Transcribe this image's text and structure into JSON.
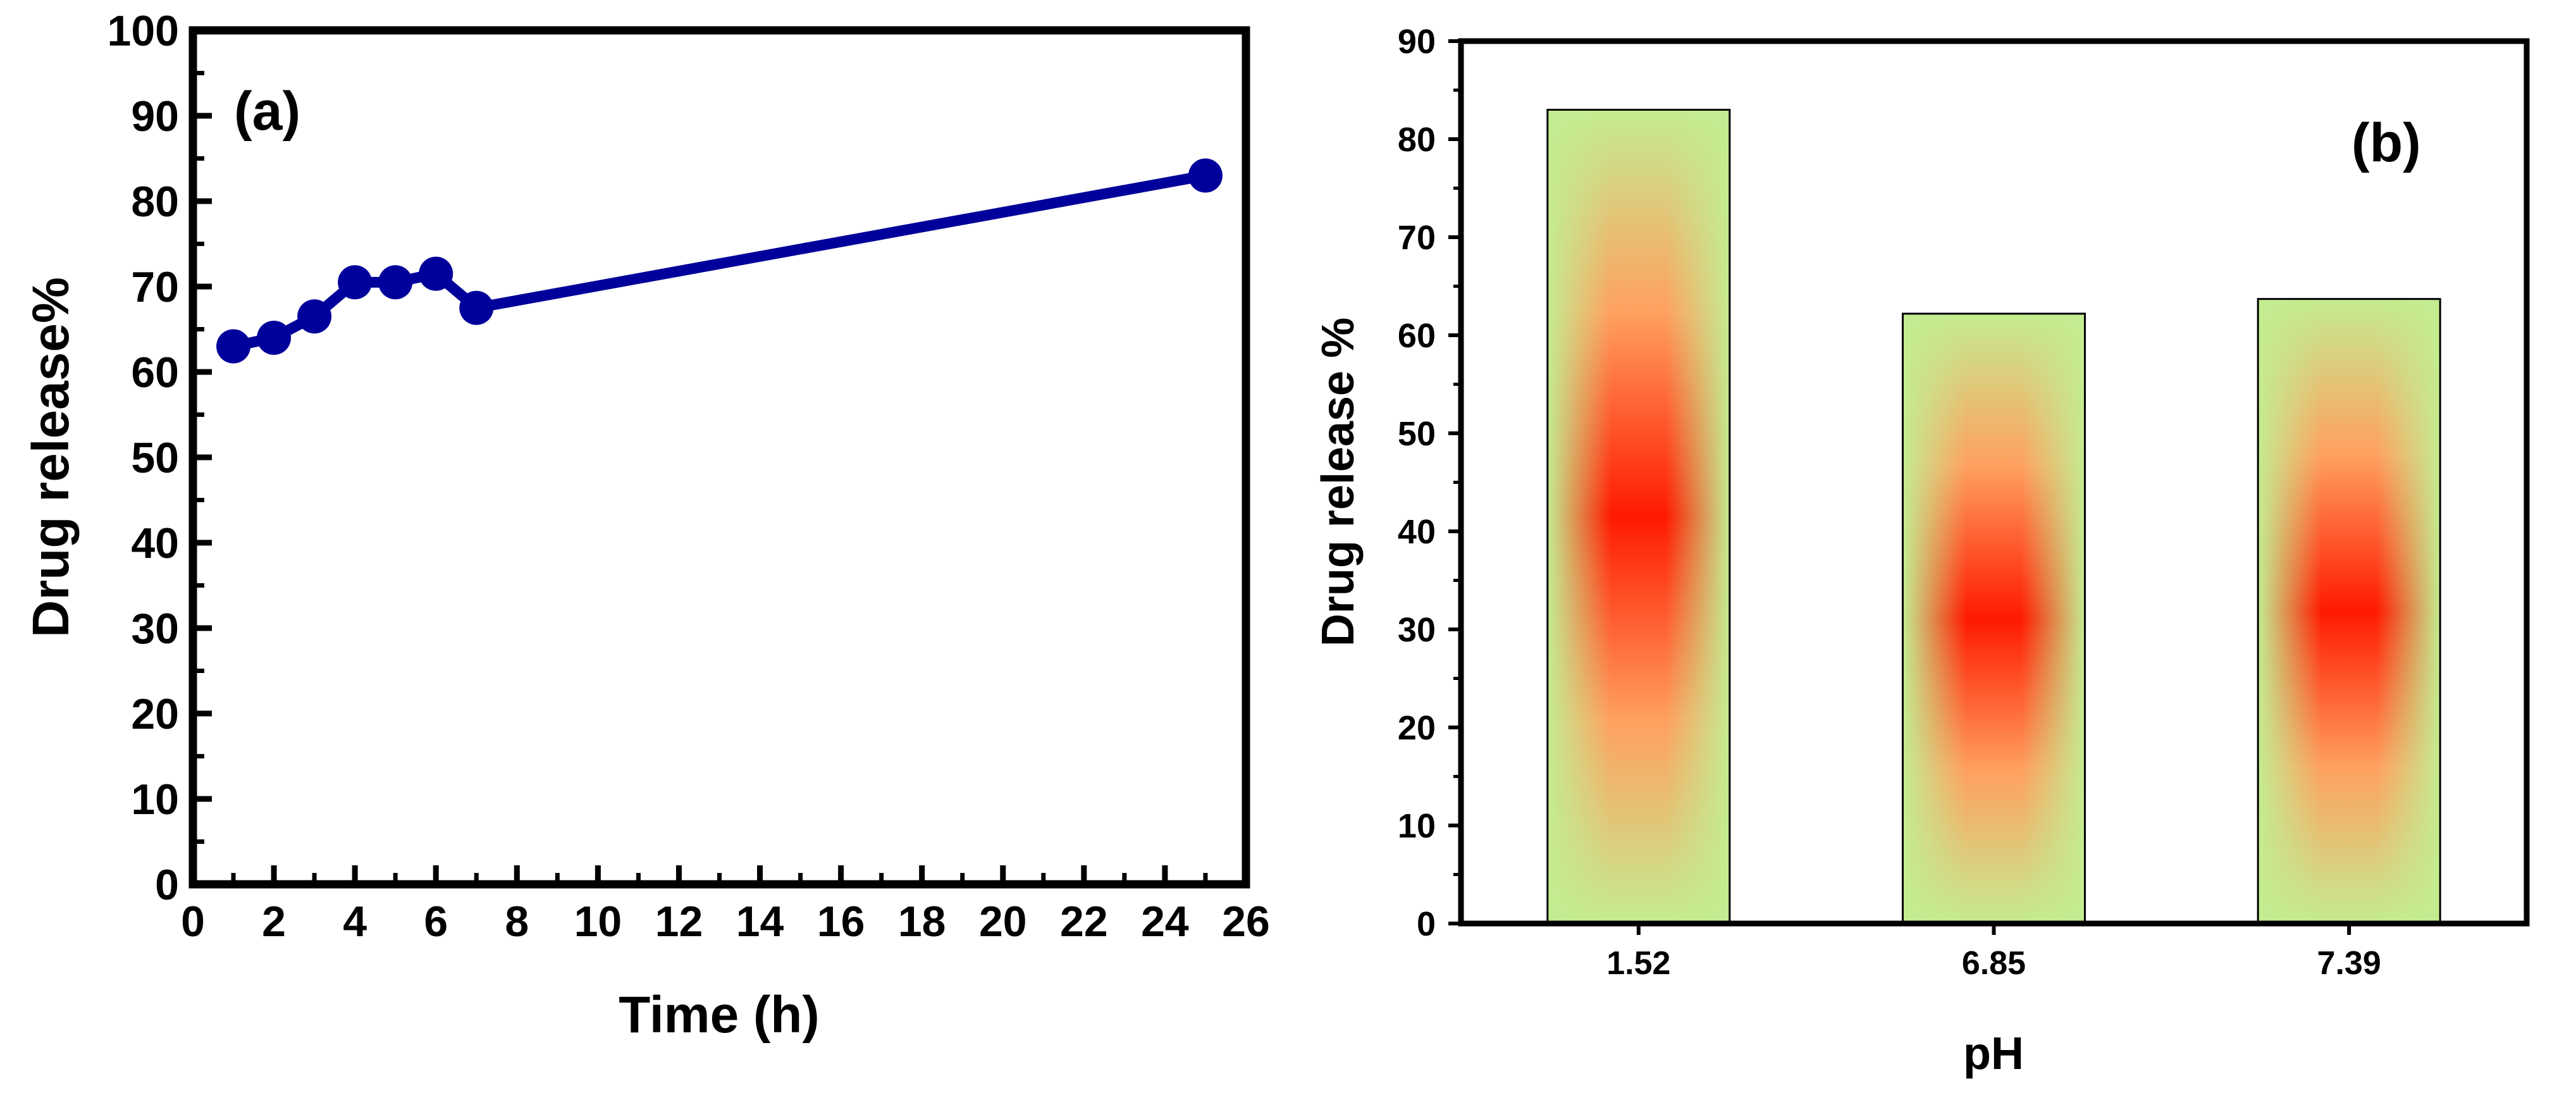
{
  "chart_data": [
    {
      "type": "line",
      "panel_label": "(a)",
      "title": "",
      "xlabel": "Time (h)",
      "ylabel": "Drug release%",
      "xlim": [
        0,
        26
      ],
      "ylim": [
        0,
        100
      ],
      "x_ticks": [
        0,
        2,
        4,
        6,
        8,
        10,
        12,
        14,
        16,
        18,
        20,
        22,
        24,
        26
      ],
      "y_ticks": [
        0,
        10,
        20,
        30,
        40,
        50,
        60,
        70,
        80,
        90,
        100
      ],
      "grid": false,
      "series": [
        {
          "x": [
            1,
            2,
            3,
            4,
            5,
            6,
            7,
            25
          ],
          "y": [
            63,
            64,
            66.5,
            70.5,
            70.5,
            71.5,
            67.5,
            83
          ],
          "color": "#00009b",
          "marker": "circle"
        }
      ]
    },
    {
      "type": "bar",
      "panel_label": "(b)",
      "title": "",
      "xlabel": "pH",
      "ylabel": "Drug release %",
      "categories": [
        "1.52",
        "6.85",
        "7.39"
      ],
      "values": [
        83,
        62.2,
        63.7
      ],
      "ylim": [
        0,
        90
      ],
      "y_ticks": [
        0,
        10,
        20,
        30,
        40,
        50,
        60,
        70,
        80,
        90
      ],
      "grid": false,
      "bar_colors": {
        "edge": "#c4ec90",
        "center": "#ff1a00",
        "outline": "#000000"
      }
    }
  ]
}
